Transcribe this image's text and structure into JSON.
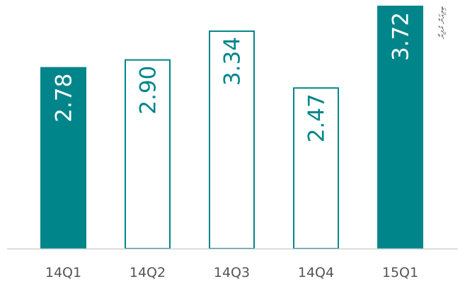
{
  "chart_data": {
    "type": "bar",
    "categories": [
      "14Q1",
      "14Q2",
      "14Q3",
      "14Q4",
      "15Q1"
    ],
    "values": [
      2.78,
      2.9,
      3.34,
      2.47,
      3.72
    ],
    "value_labels": [
      "2.78",
      "2.90",
      "3.34",
      "2.47",
      "3.72"
    ],
    "bar_styles": [
      "filled",
      "outline",
      "outline",
      "outline",
      "filled"
    ],
    "unit_label": "ބިލިއަން ރުފިޔާ",
    "ylim": [
      0,
      3.72
    ],
    "grid": false,
    "legend": "none",
    "colors": {
      "accent": "#00868a",
      "axis": "#d0d0d0",
      "tick_text": "#555555"
    }
  }
}
